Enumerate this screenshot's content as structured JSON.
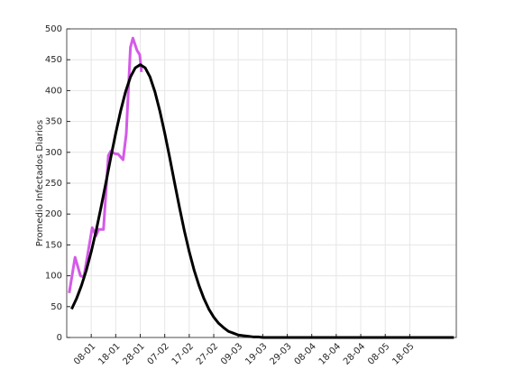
{
  "chart_data": {
    "type": "line",
    "ylabel": "Promedio Infectados Diarios",
    "xlim": [
      -2,
      157
    ],
    "ylim": [
      0,
      500
    ],
    "yticks": [
      0,
      50,
      100,
      150,
      200,
      250,
      300,
      350,
      400,
      450,
      500
    ],
    "xticks": [
      {
        "value": 8,
        "label": "08-01"
      },
      {
        "value": 18,
        "label": "18-01"
      },
      {
        "value": 28,
        "label": "28-01"
      },
      {
        "value": 38,
        "label": "07-02"
      },
      {
        "value": 48,
        "label": "17-02"
      },
      {
        "value": 58,
        "label": "27-02"
      },
      {
        "value": 68,
        "label": "09-03"
      },
      {
        "value": 78,
        "label": "19-03"
      },
      {
        "value": 88,
        "label": "29-03"
      },
      {
        "value": 98,
        "label": "08-04"
      },
      {
        "value": 108,
        "label": "18-04"
      },
      {
        "value": 118,
        "label": "28-04"
      },
      {
        "value": 128,
        "label": "08-05"
      },
      {
        "value": 138,
        "label": "18-05"
      }
    ],
    "grid": true,
    "series": [
      {
        "color": "#d45ae8",
        "width": 3,
        "x": [
          -1,
          1.4,
          3.6,
          5,
          8.4,
          10,
          11,
          13,
          15,
          16,
          17.5,
          19,
          21,
          22.3,
          24,
          25,
          26.7,
          27.8,
          28.5
        ],
        "values": [
          72,
          130,
          100,
          98,
          178,
          165,
          175,
          175,
          295,
          302,
          298,
          297,
          288,
          330,
          470,
          485,
          465,
          458,
          430
        ]
      },
      {
        "color": "#000000",
        "width": 3,
        "x": [
          0,
          2,
          4,
          6,
          8,
          10,
          12,
          14,
          16,
          18,
          20,
          22,
          24,
          26,
          28,
          30,
          32,
          34,
          36,
          38,
          40,
          42,
          44,
          46,
          48,
          50,
          52,
          54,
          56,
          58,
          60,
          62,
          64,
          66,
          68,
          70,
          72,
          74,
          76,
          78,
          80,
          156
        ],
        "values": [
          46,
          63,
          84,
          109,
          139,
          173,
          211,
          251,
          292,
          331,
          367,
          398,
          422,
          437,
          442,
          437,
          422,
          398,
          367,
          331,
          292,
          251,
          211,
          173,
          139,
          109,
          84,
          63,
          46,
          33,
          23,
          16,
          10,
          7,
          4,
          3,
          2,
          1,
          1,
          0,
          0,
          0
        ]
      }
    ]
  }
}
